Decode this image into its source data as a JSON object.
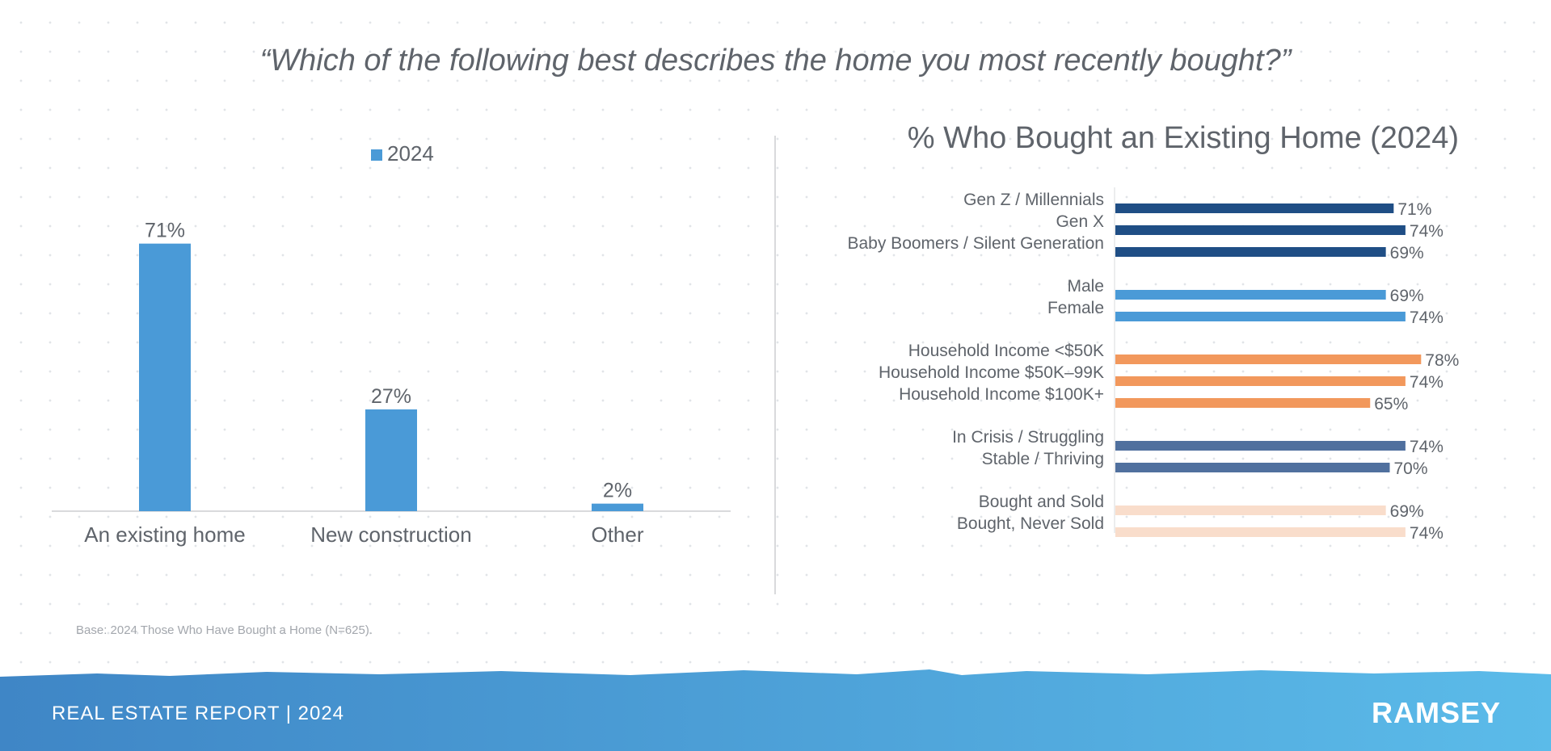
{
  "question": "“Which of the following best describes the home you most recently bought?”",
  "chart_data": [
    {
      "type": "bar",
      "categories": [
        "An existing home",
        "New construction",
        "Other"
      ],
      "series": [
        {
          "name": "2024",
          "values": [
            71,
            27,
            2
          ],
          "labels": [
            "71%",
            "27%",
            "2%"
          ]
        }
      ],
      "ylim": [
        0,
        75
      ],
      "color": "#4a9ad7",
      "legend": "top"
    },
    {
      "type": "bar",
      "orientation": "horizontal",
      "title": "% Who Bought an Existing Home (2024)",
      "categories": [
        "Gen Z / Millennials",
        "Gen X",
        "Baby Boomers / Silent Generation",
        "Male",
        "Female",
        "Household Income <$50K",
        "Household Income $50K–99K",
        "Household Income $100K+",
        "In Crisis / Struggling",
        "Stable / Thriving",
        "Bought and Sold",
        "Bought, Never Sold"
      ],
      "values": [
        71,
        74,
        69,
        69,
        74,
        78,
        74,
        65,
        74,
        70,
        69,
        74
      ],
      "labels": [
        "71%",
        "74%",
        "69%",
        "69%",
        "74%",
        "78%",
        "74%",
        "65%",
        "74%",
        "70%",
        "69%",
        "74%"
      ],
      "groups": [
        0,
        0,
        0,
        1,
        1,
        2,
        2,
        2,
        3,
        3,
        4,
        4
      ],
      "group_colors": [
        "#1f4e85",
        "#4a9ad7",
        "#f2985c",
        "#50709e",
        "#f9ddcb"
      ],
      "xlim": [
        0,
        80
      ]
    }
  ],
  "footnote": "Base: 2024 Those Who Have Bought a Home (N=625).",
  "footer": {
    "title": "REAL ESTATE REPORT | 2024",
    "logo": "RAMSEY",
    "gradient": [
      "#3f86c6",
      "#5bbbe9"
    ]
  }
}
